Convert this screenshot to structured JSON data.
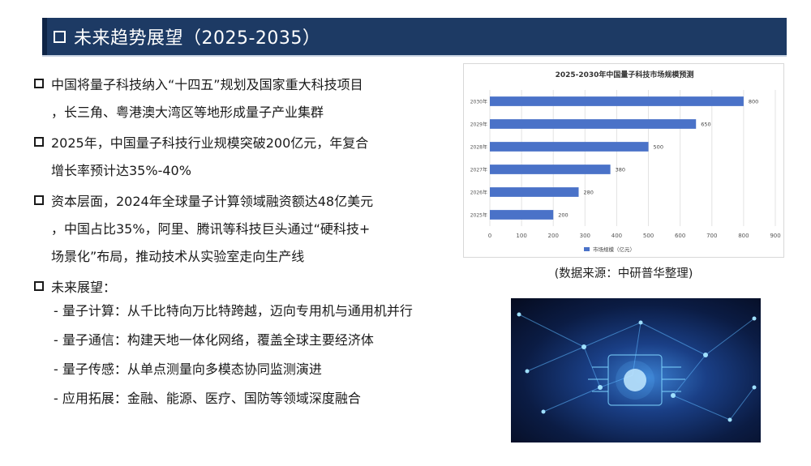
{
  "title": "未来趋势展望（2025-2035）",
  "bullets": [
    {
      "lines": [
        "中国将量子科技纳入“十四五”规划及国家重大科技项目",
        "，长三角、粤港澳大湾区等地形成量子产业集群"
      ]
    },
    {
      "lines": [
        "2025年，中国量子科技行业规模突破200亿元，年复合",
        "增长率预计达35%-40%"
      ]
    },
    {
      "lines": [
        "资本层面，2024年全球量子计算领域融资额达48亿美元",
        "，中国占比35%，阿里、腾讯等科技巨头通过“硬科技+",
        "场景化”布局，推动技术从实验室走向生产线"
      ]
    },
    {
      "lines": [
        "未来展望："
      ]
    }
  ],
  "sub_items": [
    "- 量子计算：从千比特向万比特跨越，迈向专用机与通用机并行",
    "- 量子通信：构建天地一体化网络，覆盖全球主要经济体",
    "- 量子传感：从单点测量向多模态协同监测演进",
    "- 应用拓展：金融、能源、医疗、国防等领域深度融合"
  ],
  "source_note": "(数据来源：中研普华整理)",
  "colors": {
    "title_bar": "#1d3a64",
    "bar": "#4a72c8",
    "text": "#1a1a1a"
  },
  "icons": {
    "title": "hollow-square-icon",
    "bullet": "hollow-square-icon"
  },
  "photo": {
    "caption_chip": "PE1063",
    "description_icon": "circuit-network-image"
  },
  "chart_data": {
    "type": "bar",
    "orientation": "horizontal",
    "title": "2025-2030年中国量子科技市场规模预测",
    "categories": [
      "2030年",
      "2029年",
      "2028年",
      "2027年",
      "2026年",
      "2025年"
    ],
    "series": [
      {
        "name": "市场规模（亿元）",
        "values": [
          800,
          650,
          500,
          380,
          280,
          200
        ]
      }
    ],
    "xlim": [
      0,
      900
    ],
    "xticks": [
      0,
      100,
      200,
      300,
      400,
      500,
      600,
      700,
      800,
      900
    ],
    "grid": true,
    "legend": "bottom"
  }
}
